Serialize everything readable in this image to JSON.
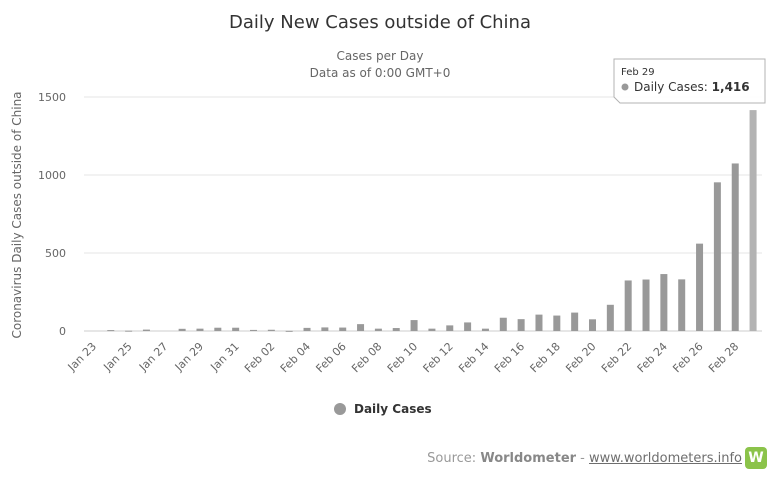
{
  "chart_data": {
    "type": "bar",
    "title": "Daily New Cases outside of China",
    "subtitle": "Cases per Day",
    "subtitle2": "Data as of 0:00 GMT+0",
    "ylabel": "Coronavirus Daily Cases outside of China",
    "ylim": [
      0,
      1500
    ],
    "yticks": [
      0,
      500,
      1000,
      1500
    ],
    "grid": true,
    "legend_position": "bottom-center",
    "categories": [
      "Jan 23",
      "Jan 24",
      "Jan 25",
      "Jan 26",
      "Jan 27",
      "Jan 28",
      "Jan 29",
      "Jan 30",
      "Jan 31",
      "Feb 01",
      "Feb 02",
      "Feb 03",
      "Feb 04",
      "Feb 05",
      "Feb 06",
      "Feb 07",
      "Feb 08",
      "Feb 09",
      "Feb 10",
      "Feb 11",
      "Feb 12",
      "Feb 13",
      "Feb 14",
      "Feb 15",
      "Feb 16",
      "Feb 17",
      "Feb 18",
      "Feb 19",
      "Feb 20",
      "Feb 21",
      "Feb 22",
      "Feb 23",
      "Feb 24",
      "Feb 25",
      "Feb 26",
      "Feb 27",
      "Feb 28",
      "Feb 29"
    ],
    "tick_labels": [
      "Jan 23",
      "Jan 25",
      "Jan 27",
      "Jan 29",
      "Jan 31",
      "Feb 02",
      "Feb 04",
      "Feb 06",
      "Feb 08",
      "Feb 10",
      "Feb 12",
      "Feb 14",
      "Feb 16",
      "Feb 18",
      "Feb 20",
      "Feb 22",
      "Feb 24",
      "Feb 26",
      "Feb 28"
    ],
    "series": [
      {
        "name": "Daily Cases",
        "color": "#999999",
        "values": [
          0,
          6,
          2,
          9,
          0,
          14,
          15,
          21,
          21,
          7,
          8,
          1,
          20,
          23,
          22,
          44,
          15,
          19,
          70,
          15,
          36,
          55,
          15,
          85,
          76,
          105,
          99,
          118,
          75,
          168,
          324,
          330,
          365,
          331,
          560,
          953,
          1074,
          1416
        ]
      }
    ],
    "highlight_index": 37,
    "highlight_color": "#b3b3b3"
  },
  "tooltip": {
    "date": "Feb 29",
    "label": "Daily Cases: ",
    "value": "1,416"
  },
  "source": {
    "prefix": "Source: ",
    "brand": "Worldometer",
    "separator": " - ",
    "link": "www.worldometers.info",
    "logo_letter": "W"
  }
}
